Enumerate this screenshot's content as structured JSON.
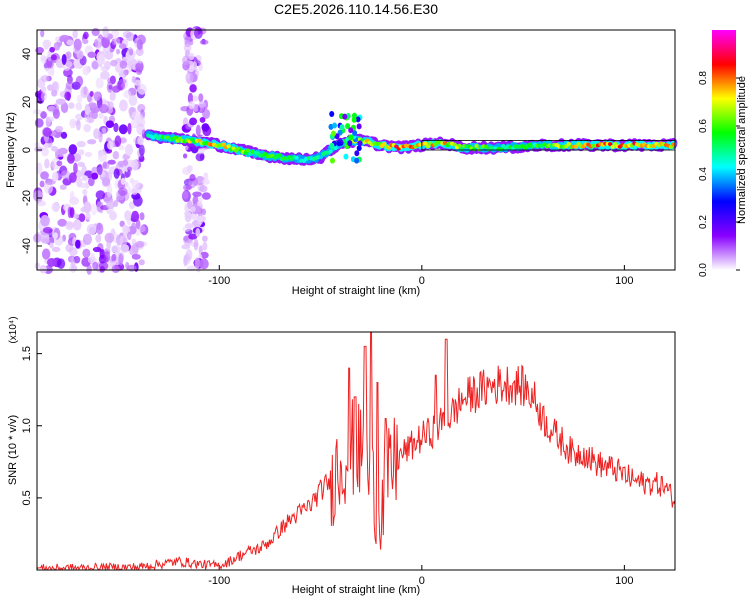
{
  "title": "C2E5.2026.110.14.56.E30",
  "chart_data": [
    {
      "type": "heatmap",
      "xlabel": "Height of straight line (km)",
      "ylabel": "Frequency (Hz)",
      "xlim": [
        -190,
        125
      ],
      "ylim": [
        -50,
        50
      ],
      "x_ticks": [
        -100,
        0,
        100
      ],
      "y_ticks": [
        -40,
        -20,
        0,
        20,
        40
      ],
      "colorbar": {
        "label": "Normalized spectral amplitude",
        "range": [
          0,
          1
        ],
        "ticks": [
          "0.0",
          "0.2",
          "0.4",
          "0.6",
          "0.8"
        ],
        "tick_values": [
          0.0,
          0.2,
          0.4,
          0.6,
          0.8
        ],
        "colors": [
          "#ffffff",
          "#8800ff",
          "#0000ff",
          "#00ffff",
          "#00ff00",
          "#ffff00",
          "#ff0000",
          "#ff00ff"
        ]
      },
      "noise_regions_km": [
        [
          -190,
          -137
        ],
        [
          -117,
          -106
        ]
      ],
      "signal_trace": [
        {
          "x": -135,
          "f": 6,
          "a": 0.5
        },
        {
          "x": -125,
          "f": 5,
          "a": 0.6
        },
        {
          "x": -115,
          "f": 4,
          "a": 0.7
        },
        {
          "x": -100,
          "f": 2,
          "a": 0.8
        },
        {
          "x": -90,
          "f": 0,
          "a": 0.7
        },
        {
          "x": -80,
          "f": -2,
          "a": 0.6
        },
        {
          "x": -70,
          "f": -3,
          "a": 0.6
        },
        {
          "x": -60,
          "f": -4,
          "a": 0.5
        },
        {
          "x": -50,
          "f": -3,
          "a": 0.5
        },
        {
          "x": -40,
          "f": 3,
          "a": 0.6
        },
        {
          "x": -30,
          "f": 4,
          "a": 0.7
        },
        {
          "x": -20,
          "f": 2,
          "a": 0.8
        },
        {
          "x": -10,
          "f": 1,
          "a": 0.9
        },
        {
          "x": 0,
          "f": 2,
          "a": 0.8
        },
        {
          "x": 10,
          "f": 3,
          "a": 0.8
        },
        {
          "x": 20,
          "f": 1,
          "a": 0.7
        },
        {
          "x": 40,
          "f": 1,
          "a": 0.55
        },
        {
          "x": 60,
          "f": 2,
          "a": 0.6
        },
        {
          "x": 80,
          "f": 2,
          "a": 0.8
        },
        {
          "x": 100,
          "f": 2,
          "a": 0.85
        },
        {
          "x": 120,
          "f": 2,
          "a": 0.85
        }
      ]
    },
    {
      "type": "line",
      "xlabel": "Height of straight line (km)",
      "ylabel": "SNR (10 * v/v)",
      "y_multiplier": "(x10⁴)",
      "xlim": [
        -190,
        125
      ],
      "ylim": [
        0,
        1.65
      ],
      "x_ticks": [
        -100,
        0,
        100
      ],
      "y_ticks": [
        0.5,
        1.0,
        1.5
      ],
      "y_tick_labels": [
        "0.5",
        "1.0",
        "1.5"
      ],
      "color": "#ee2222",
      "series": [
        {
          "name": "SNR",
          "x": [
            -190,
            -160,
            -140,
            -130,
            -120,
            -110,
            -100,
            -95,
            -90,
            -85,
            -80,
            -75,
            -70,
            -65,
            -60,
            -55,
            -50,
            -45,
            -40,
            -35,
            -30,
            -25,
            -20,
            -15,
            -10,
            -5,
            0,
            5,
            10,
            15,
            20,
            25,
            30,
            35,
            40,
            45,
            50,
            55,
            60,
            65,
            70,
            75,
            80,
            85,
            90,
            95,
            100,
            105,
            110,
            115,
            120,
            125
          ],
          "y": [
            0.01,
            0.015,
            0.02,
            0.04,
            0.06,
            0.04,
            0.03,
            0.06,
            0.1,
            0.13,
            0.15,
            0.2,
            0.28,
            0.35,
            0.4,
            0.45,
            0.55,
            0.62,
            0.75,
            0.85,
            0.8,
            0.6,
            0.45,
            0.7,
            0.8,
            0.86,
            0.92,
            0.96,
            1.02,
            1.08,
            1.18,
            1.22,
            1.25,
            1.28,
            1.29,
            1.29,
            1.27,
            1.2,
            1.05,
            0.95,
            0.88,
            0.8,
            0.82,
            0.75,
            0.72,
            0.7,
            0.66,
            0.62,
            0.6,
            0.6,
            0.58,
            0.48
          ]
        }
      ],
      "peaks": [
        {
          "x": -36,
          "y": 1.4
        },
        {
          "x": -33,
          "y": 1.2
        },
        {
          "x": -28,
          "y": 1.55
        },
        {
          "x": -25,
          "y": 1.66
        },
        {
          "x": -22,
          "y": 1.3
        },
        {
          "x": -18,
          "y": 1.05
        },
        {
          "x": 12,
          "y": 1.6
        },
        {
          "x": 7,
          "y": 1.35
        }
      ]
    }
  ]
}
